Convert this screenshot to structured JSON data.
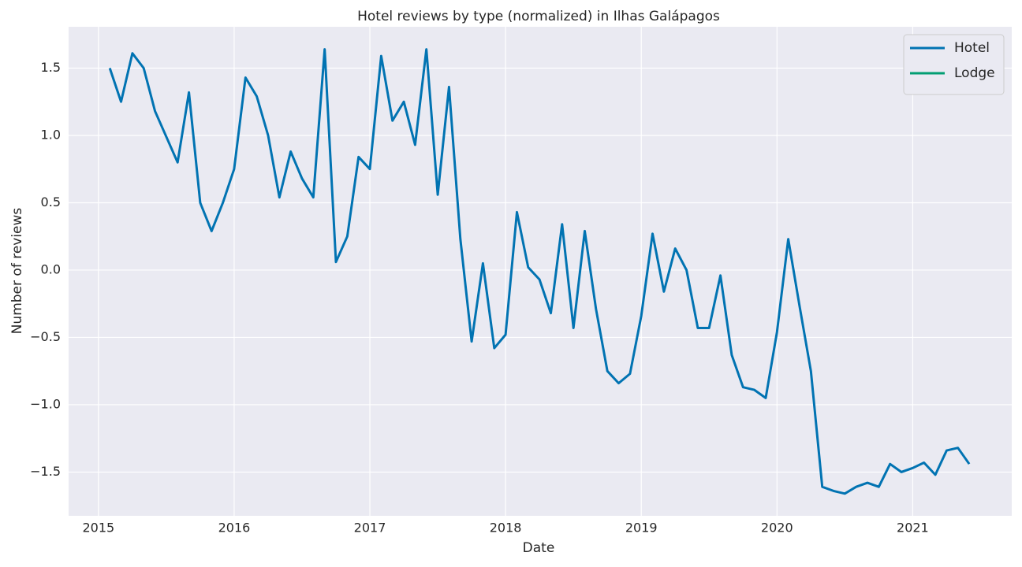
{
  "chart_data": {
    "type": "line",
    "title": "Hotel reviews by type (normalized) in Ilhas Galápagos",
    "xlabel": "Date",
    "ylabel": "Number of reviews",
    "x": [
      "2015-02",
      "2015-03",
      "2015-04",
      "2015-05",
      "2015-06",
      "2015-07",
      "2015-08",
      "2015-09",
      "2015-10",
      "2015-11",
      "2015-12",
      "2016-01",
      "2016-02",
      "2016-03",
      "2016-04",
      "2016-05",
      "2016-06",
      "2016-07",
      "2016-08",
      "2016-09",
      "2016-10",
      "2016-11",
      "2016-12",
      "2017-01",
      "2017-02",
      "2017-03",
      "2017-04",
      "2017-05",
      "2017-06",
      "2017-07",
      "2017-08",
      "2017-09",
      "2017-10",
      "2017-11",
      "2017-12",
      "2018-01",
      "2018-02",
      "2018-03",
      "2018-04",
      "2018-05",
      "2018-06",
      "2018-07",
      "2018-08",
      "2018-09",
      "2018-10",
      "2018-11",
      "2018-12",
      "2019-01",
      "2019-02",
      "2019-03",
      "2019-04",
      "2019-05",
      "2019-06",
      "2019-07",
      "2019-08",
      "2019-09",
      "2019-10",
      "2019-11",
      "2019-12",
      "2020-01",
      "2020-02",
      "2020-03",
      "2020-04",
      "2020-05",
      "2020-06",
      "2020-07",
      "2020-08",
      "2020-09",
      "2020-10",
      "2020-11",
      "2020-12",
      "2021-01",
      "2021-02",
      "2021-03",
      "2021-04",
      "2021-05",
      "2021-06"
    ],
    "series": [
      {
        "name": "Hotel",
        "color": "#0173b2",
        "values": [
          1.5,
          1.25,
          1.61,
          1.5,
          1.18,
          0.99,
          0.8,
          1.32,
          0.5,
          0.29,
          0.5,
          0.75,
          1.43,
          1.29,
          1.0,
          0.54,
          0.88,
          0.68,
          0.54,
          1.64,
          0.06,
          0.25,
          0.84,
          0.75,
          1.59,
          1.11,
          1.25,
          0.93,
          1.64,
          0.56,
          1.36,
          0.23,
          -0.53,
          0.05,
          -0.58,
          -0.48,
          0.43,
          0.02,
          -0.07,
          -0.32,
          0.34,
          -0.43,
          0.29,
          -0.29,
          -0.75,
          -0.84,
          -0.77,
          -0.34,
          0.27,
          -0.16,
          0.16,
          0.0,
          -0.43,
          -0.43,
          -0.04,
          -0.63,
          -0.87,
          -0.89,
          -0.95,
          -0.46,
          0.23,
          -0.27,
          -0.75,
          -1.61,
          -1.64,
          -1.66,
          -1.61,
          -1.58,
          -1.61,
          -1.44,
          -1.5,
          -1.47,
          -1.43,
          -1.52,
          -1.34,
          -1.32,
          -1.44
        ]
      },
      {
        "name": "Lodge",
        "color": "#029e73",
        "values": [
          null,
          null,
          null,
          null,
          null,
          null,
          null,
          null,
          null,
          null,
          null,
          null,
          null,
          null,
          null,
          null,
          null,
          null,
          null,
          null,
          null,
          null,
          null,
          null,
          null,
          null,
          null,
          null,
          null,
          null,
          null,
          null,
          null,
          null,
          null,
          null,
          null,
          null,
          null,
          null,
          null,
          null,
          null,
          null,
          null,
          null,
          null,
          null,
          null,
          null,
          null,
          null,
          null,
          null,
          null,
          null,
          null,
          null,
          null,
          null,
          null,
          null,
          null,
          null,
          null,
          null,
          null,
          null,
          null,
          null,
          null,
          null,
          null,
          null,
          null,
          null,
          null
        ]
      }
    ],
    "xlim": [
      2014.78,
      2021.73
    ],
    "xticks": [
      2015,
      2016,
      2017,
      2018,
      2019,
      2020,
      2021
    ],
    "ylim": [
      -1.825,
      1.807
    ],
    "yticks": [
      {
        "value": -1.5,
        "label": "−1.5"
      },
      {
        "value": -1,
        "label": "−1.0"
      },
      {
        "value": -0.5,
        "label": "−0.5"
      },
      {
        "value": 0,
        "label": "0.0"
      },
      {
        "value": 0.5,
        "label": "0.5"
      },
      {
        "value": 1,
        "label": "1.0"
      },
      1.5
    ],
    "grid": true,
    "legend": "upper right"
  }
}
